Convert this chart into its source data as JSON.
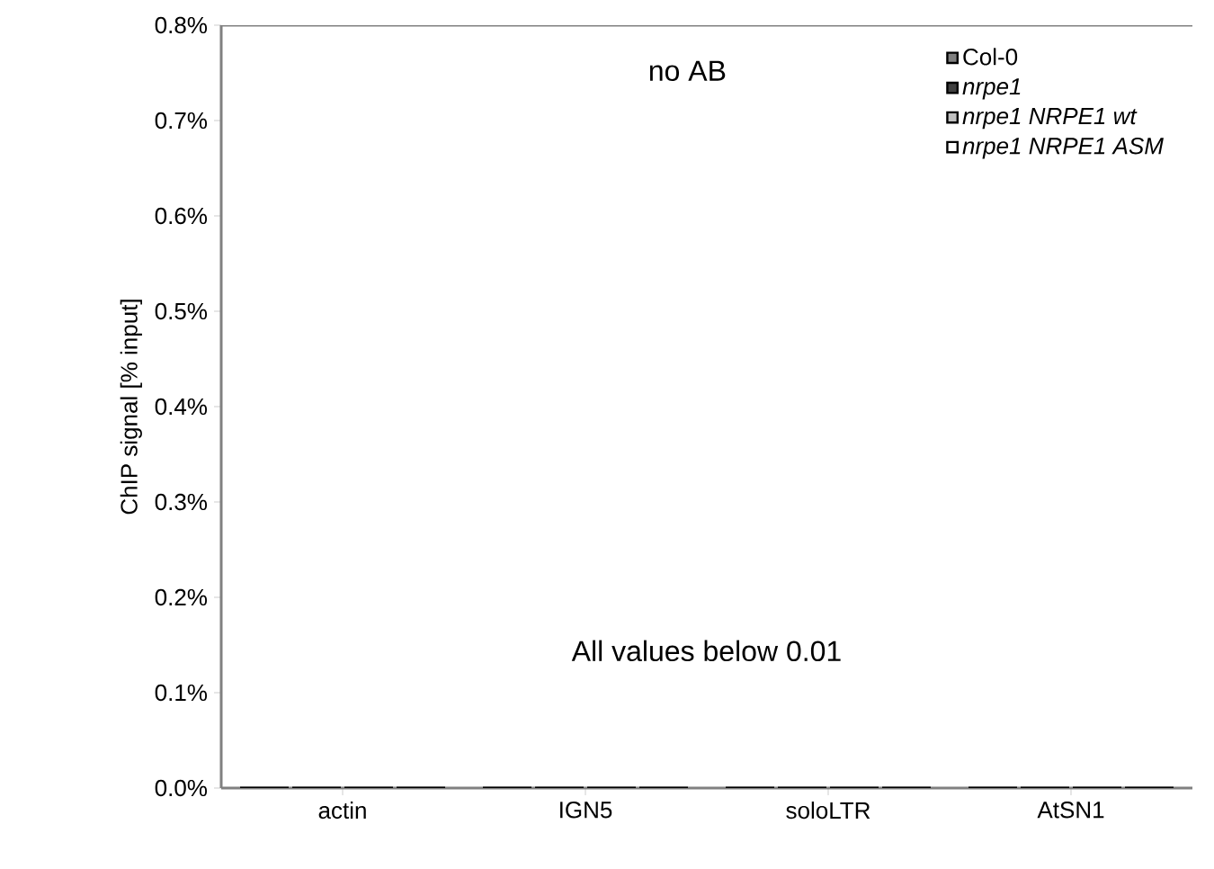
{
  "chart_data": {
    "type": "bar",
    "categories": [
      "actin",
      "IGN5",
      "soloLTR",
      "AtSN1"
    ],
    "ylabel": "ChIP signal [% input]",
    "ylim": [
      0,
      0.8
    ],
    "yticks": [
      {
        "value": 0,
        "label": "0.0%"
      },
      {
        "value": 0.1,
        "label": "0.1%"
      },
      {
        "value": 0.2,
        "label": "0.2%"
      },
      {
        "value": 0.3,
        "label": "0.3%"
      },
      {
        "value": 0.4,
        "label": "0.4%"
      },
      {
        "value": 0.5,
        "label": "0.5%"
      },
      {
        "value": 0.6,
        "label": "0.6%"
      },
      {
        "value": 0.7,
        "label": "0.7%"
      },
      {
        "value": 0.8,
        "label": "0.8%"
      }
    ],
    "series": [
      {
        "name": "Col-0",
        "color": "#808080",
        "values": [
          0,
          0,
          0,
          0
        ]
      },
      {
        "name": "*nrpe1*",
        "color": "#404040",
        "values": [
          0,
          0,
          0,
          0
        ]
      },
      {
        "name": "*nrpe1 NRPE1 wt*",
        "color": "#c0c0c0",
        "values": [
          0,
          0,
          0,
          0
        ]
      },
      {
        "name": "*nrpe1 NRPE1 ASM*",
        "color": "#ffffff",
        "values": [
          0,
          0,
          0,
          0
        ]
      }
    ],
    "annotations": [
      "no AB",
      "All values below 0.01"
    ],
    "legend": "top right",
    "grid": false
  }
}
